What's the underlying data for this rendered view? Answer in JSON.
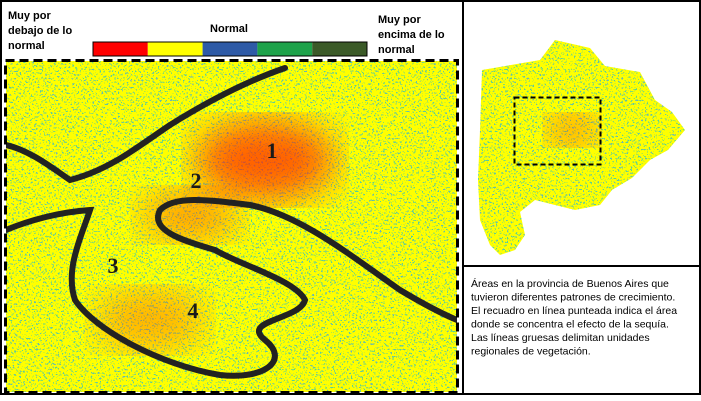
{
  "legend": {
    "low_label": [
      "Muy por",
      "debajo de lo",
      "normal"
    ],
    "mid_label": "Normal",
    "high_label": [
      "Muy por",
      "encima de lo",
      "normal"
    ],
    "colors": [
      "#ff0000",
      "#ffff00",
      "#2e5aa6",
      "#1ea24a",
      "#3b5a28"
    ]
  },
  "map": {
    "region_labels": [
      "1",
      "2",
      "3",
      "4"
    ]
  },
  "caption": {
    "lines": [
      "Áreas en la provincia de Buenos Aires que",
      "tuvieron diferentes patrones de crecimiento.",
      "El recuadro en línea punteada indica el área",
      "donde se concentra el efecto de la sequía.",
      "Las líneas gruesas delimitan unidades",
      "regionales de vegetación."
    ]
  }
}
